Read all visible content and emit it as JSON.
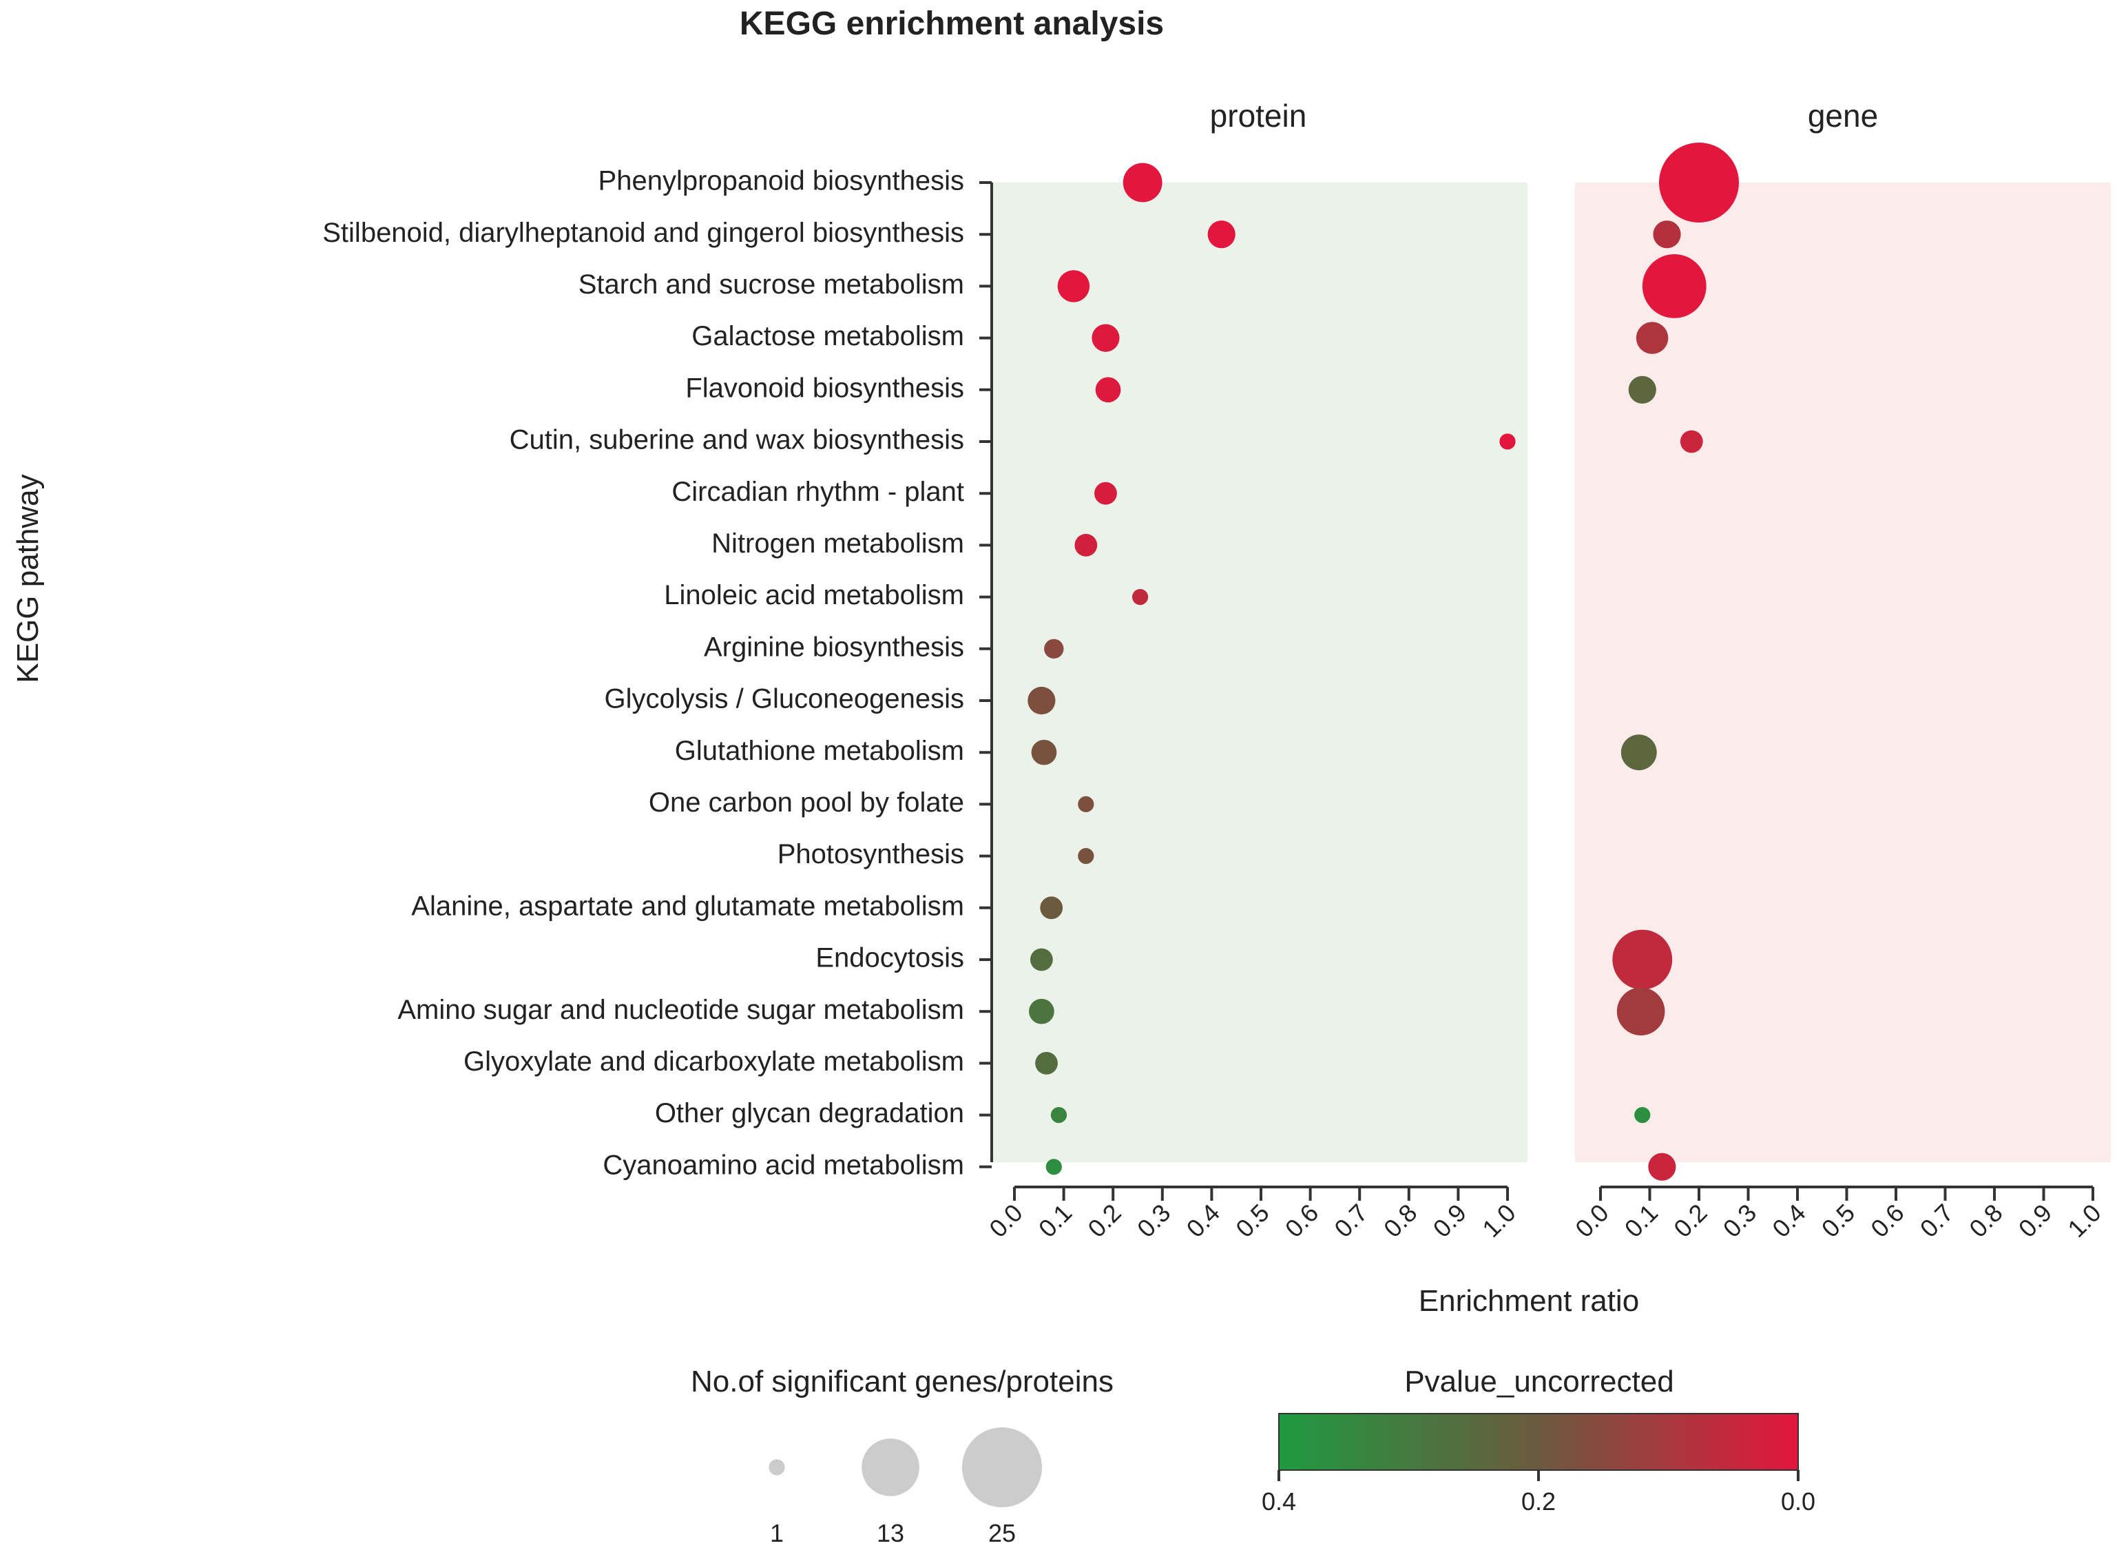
{
  "chart_data": {
    "type": "scatter",
    "title": "KEGG enrichment analysis",
    "ylabel": "KEGG pathway",
    "xlabel": "Enrichment ratio",
    "xlim": [
      0,
      1
    ],
    "x_ticks": [
      "0.0",
      "0.1",
      "0.2",
      "0.3",
      "0.4",
      "0.5",
      "0.6",
      "0.7",
      "0.8",
      "0.9",
      "1.0"
    ],
    "categories": [
      "Phenylpropanoid biosynthesis",
      "Stilbenoid, diarylheptanoid and gingerol biosynthesis",
      "Starch and sucrose metabolism",
      "Galactose metabolism",
      "Flavonoid biosynthesis",
      "Cutin, suberine and wax biosynthesis",
      "Circadian rhythm - plant",
      "Nitrogen metabolism",
      "Linoleic acid metabolism",
      "Arginine biosynthesis",
      "Glycolysis / Gluconeogenesis",
      "Glutathione metabolism",
      "One carbon pool by folate",
      "Photosynthesis",
      "Alanine, aspartate and glutamate metabolism",
      "Endocytosis",
      "Amino sugar and nucleotide sugar metabolism",
      "Glyoxylate and dicarboxylate metabolism",
      "Other glycan degradation",
      "Cyanoamino acid metabolism"
    ],
    "series": [
      {
        "name": "protein",
        "panel_color": "#ebf2ea",
        "points": [
          {
            "pathway": 0,
            "ratio": 0.26,
            "count": 6,
            "pvalue": 0.0
          },
          {
            "pathway": 1,
            "ratio": 0.42,
            "count": 3,
            "pvalue": 0.0
          },
          {
            "pathway": 2,
            "ratio": 0.12,
            "count": 4,
            "pvalue": 0.0
          },
          {
            "pathway": 3,
            "ratio": 0.185,
            "count": 3,
            "pvalue": 0.01
          },
          {
            "pathway": 4,
            "ratio": 0.19,
            "count": 2.5,
            "pvalue": 0.01
          },
          {
            "pathway": 5,
            "ratio": 1.0,
            "count": 1,
            "pvalue": 0.0
          },
          {
            "pathway": 6,
            "ratio": 0.185,
            "count": 2,
            "pvalue": 0.02
          },
          {
            "pathway": 7,
            "ratio": 0.145,
            "count": 2,
            "pvalue": 0.03
          },
          {
            "pathway": 8,
            "ratio": 0.255,
            "count": 1,
            "pvalue": 0.06
          },
          {
            "pathway": 9,
            "ratio": 0.08,
            "count": 1.5,
            "pvalue": 0.15
          },
          {
            "pathway": 10,
            "ratio": 0.055,
            "count": 3,
            "pvalue": 0.17
          },
          {
            "pathway": 11,
            "ratio": 0.06,
            "count": 2.5,
            "pvalue": 0.18
          },
          {
            "pathway": 12,
            "ratio": 0.145,
            "count": 1,
            "pvalue": 0.17
          },
          {
            "pathway": 13,
            "ratio": 0.145,
            "count": 1,
            "pvalue": 0.18
          },
          {
            "pathway": 14,
            "ratio": 0.075,
            "count": 2,
            "pvalue": 0.2
          },
          {
            "pathway": 15,
            "ratio": 0.055,
            "count": 2,
            "pvalue": 0.26
          },
          {
            "pathway": 16,
            "ratio": 0.055,
            "count": 2.5,
            "pvalue": 0.28
          },
          {
            "pathway": 17,
            "ratio": 0.065,
            "count": 2,
            "pvalue": 0.26
          },
          {
            "pathway": 18,
            "ratio": 0.09,
            "count": 1,
            "pvalue": 0.33
          },
          {
            "pathway": 19,
            "ratio": 0.08,
            "count": 1,
            "pvalue": 0.36
          }
        ]
      },
      {
        "name": "gene",
        "panel_color": "#fcebeb",
        "points": [
          {
            "pathway": 0,
            "ratio": 0.2,
            "count": 25,
            "pvalue": 0.0
          },
          {
            "pathway": 1,
            "ratio": 0.135,
            "count": 3,
            "pvalue": 0.08
          },
          {
            "pathway": 2,
            "ratio": 0.15,
            "count": 16,
            "pvalue": 0.0
          },
          {
            "pathway": 3,
            "ratio": 0.105,
            "count": 4,
            "pvalue": 0.09
          },
          {
            "pathway": 4,
            "ratio": 0.085,
            "count": 3,
            "pvalue": 0.24
          },
          {
            "pathway": 5,
            "ratio": 0.185,
            "count": 2,
            "pvalue": 0.04
          },
          {
            "pathway": 11,
            "ratio": 0.078,
            "count": 5,
            "pvalue": 0.24
          },
          {
            "pathway": 15,
            "ratio": 0.085,
            "count": 14,
            "pvalue": 0.06
          },
          {
            "pathway": 16,
            "ratio": 0.082,
            "count": 9,
            "pvalue": 0.11
          },
          {
            "pathway": 18,
            "ratio": 0.085,
            "count": 1,
            "pvalue": 0.37
          },
          {
            "pathway": 19,
            "ratio": 0.125,
            "count": 3,
            "pvalue": 0.04
          }
        ]
      }
    ],
    "size_legend": {
      "title": "No.of significant genes/proteins",
      "values": [
        1,
        13,
        25
      ],
      "labels": [
        "1",
        "13",
        "25"
      ],
      "color": "#cccccc"
    },
    "color_legend": {
      "title": "Pvalue_uncorrected",
      "range": [
        0.4,
        0.0
      ],
      "labels": [
        "0.4",
        "0.2",
        "0.0"
      ],
      "stops": [
        "#1e9a40",
        "#6b5a3e",
        "#e3163d"
      ]
    }
  }
}
